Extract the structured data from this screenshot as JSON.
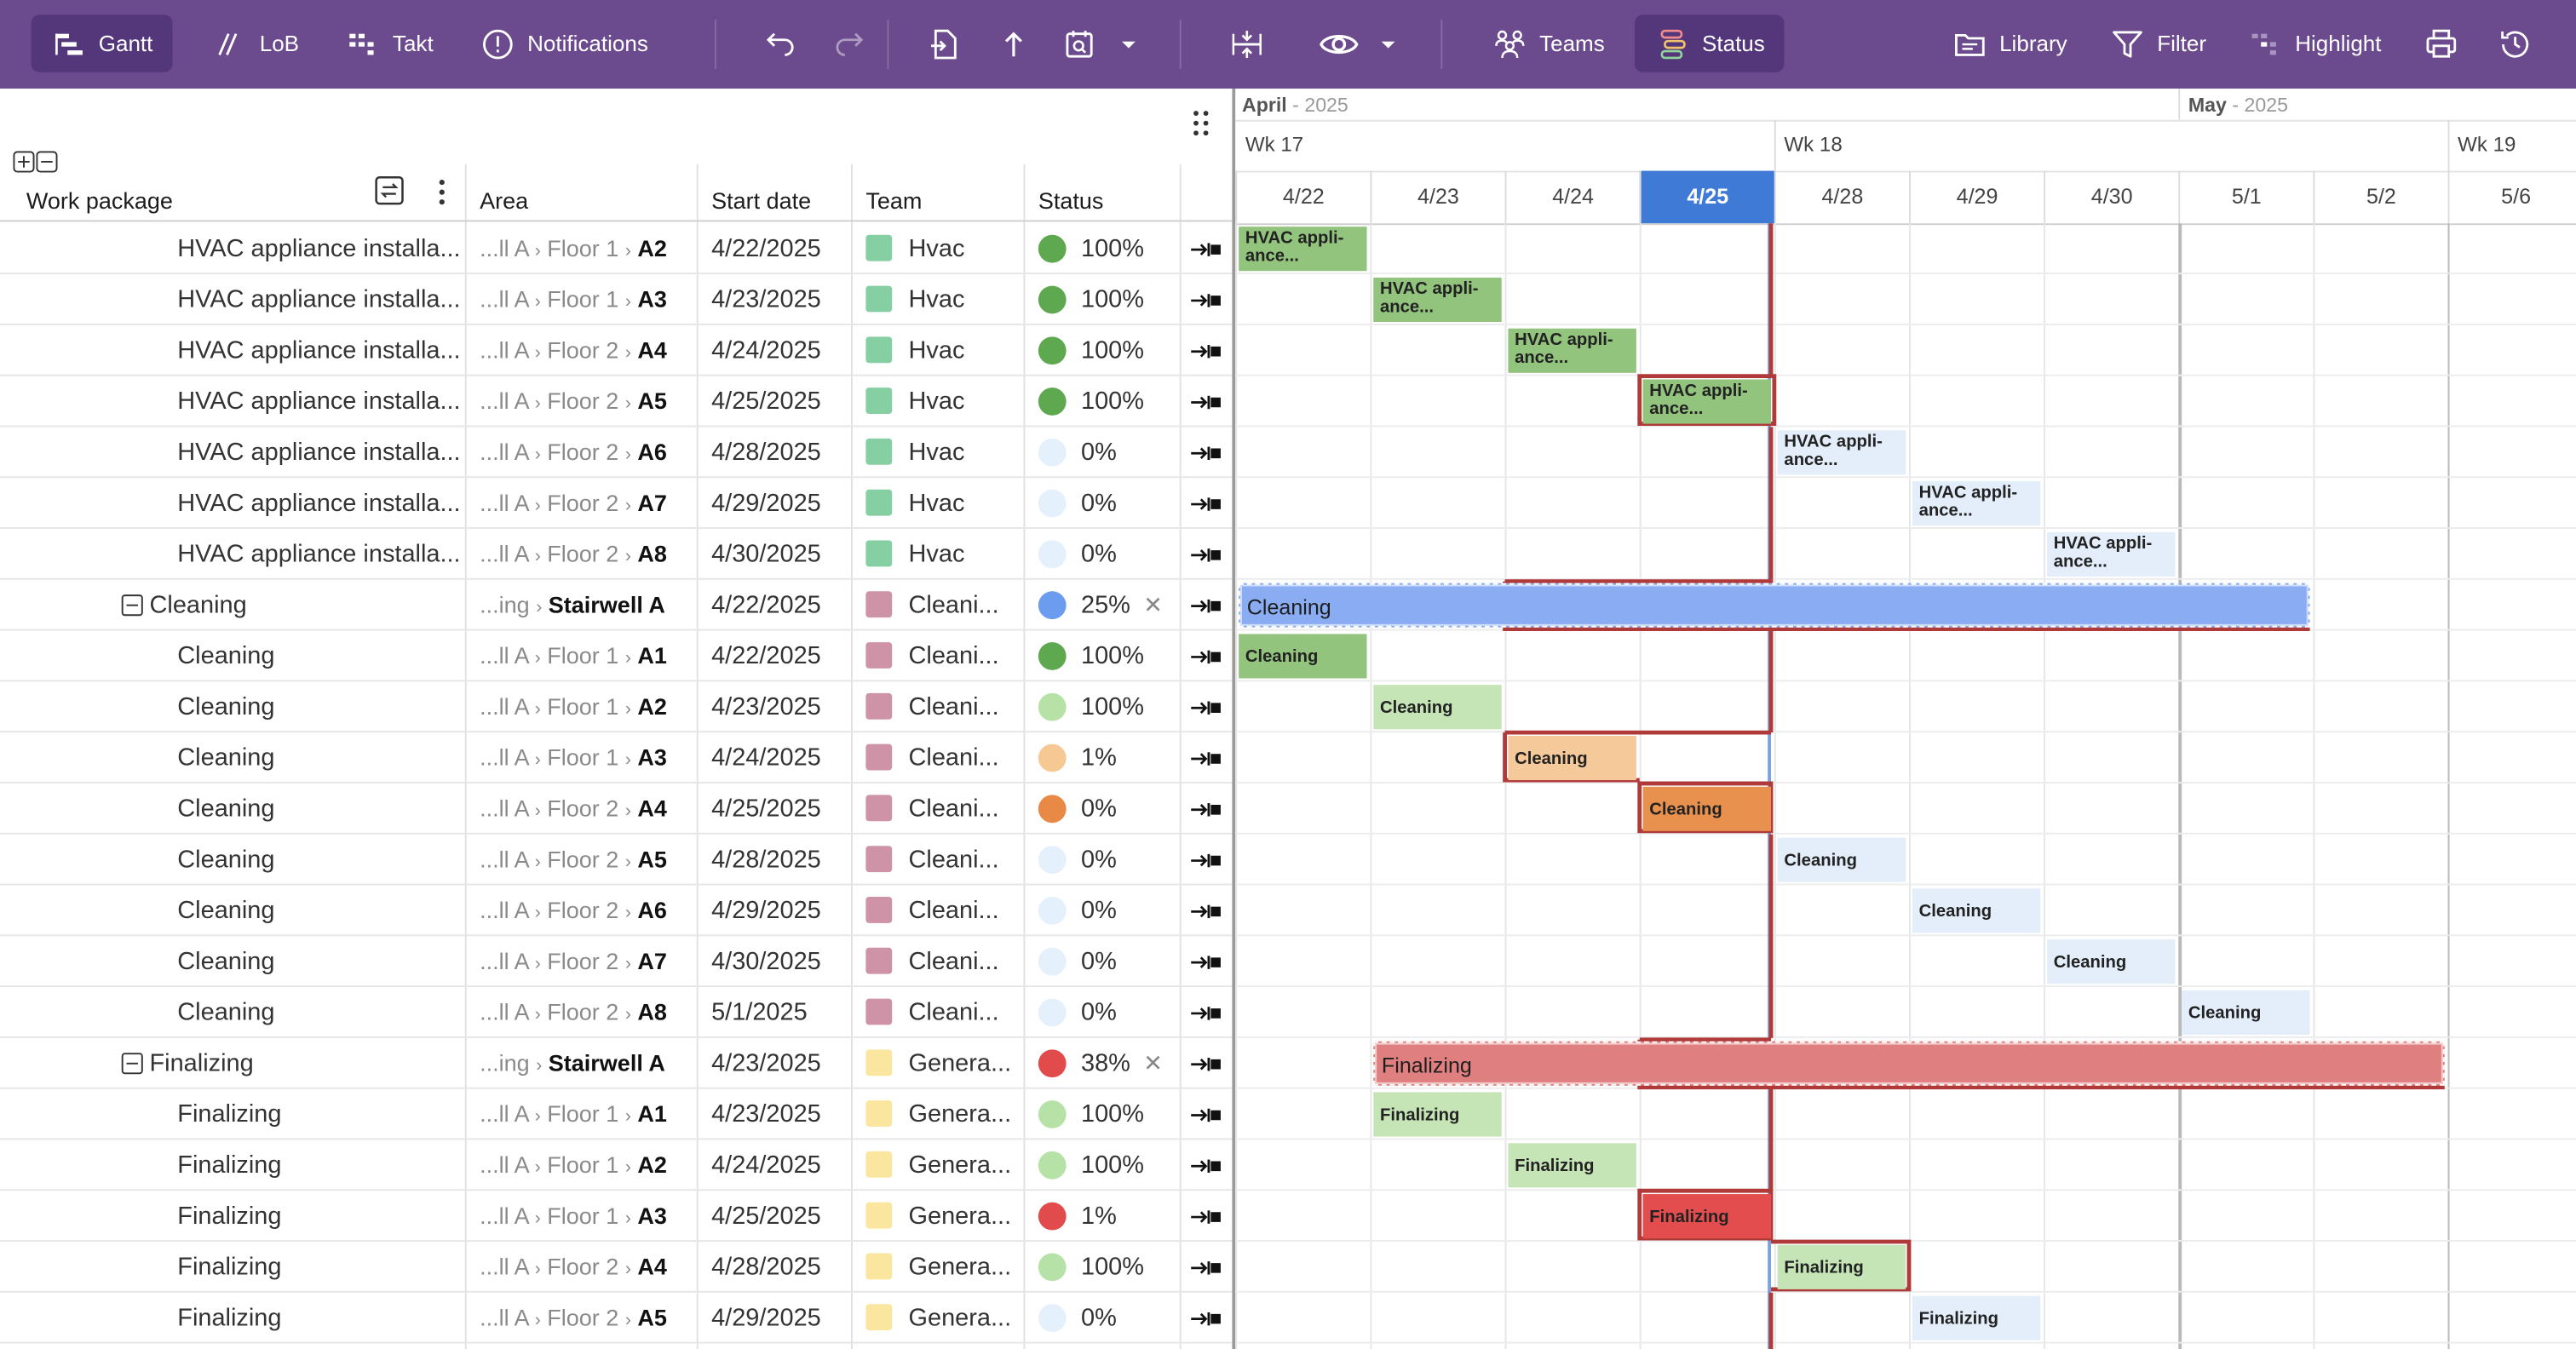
{
  "toolbar": {
    "gantt": "Gantt",
    "lob": "LoB",
    "takt": "Takt",
    "notifications": "Notifications",
    "teams": "Teams",
    "status": "Status",
    "library": "Library",
    "filter": "Filter",
    "highlight": "Highlight"
  },
  "table": {
    "headers": {
      "work_package": "Work package",
      "area": "Area",
      "start_date": "Start date",
      "team": "Team",
      "status": "Status"
    },
    "rows": [
      {
        "name": "HVAC appliance installa...",
        "group": false,
        "area_prefix": "...ll A",
        "area_mid": "Floor 1",
        "area_leaf": "A2",
        "start": "4/22/2025",
        "team": "Hvac",
        "team_color": "#86cfa3",
        "status_color": "#5ea84f",
        "status_pct": "100%"
      },
      {
        "name": "HVAC appliance installa...",
        "group": false,
        "area_prefix": "...ll A",
        "area_mid": "Floor 1",
        "area_leaf": "A3",
        "start": "4/23/2025",
        "team": "Hvac",
        "team_color": "#86cfa3",
        "status_color": "#5ea84f",
        "status_pct": "100%"
      },
      {
        "name": "HVAC appliance installa...",
        "group": false,
        "area_prefix": "...ll A",
        "area_mid": "Floor 2",
        "area_leaf": "A4",
        "start": "4/24/2025",
        "team": "Hvac",
        "team_color": "#86cfa3",
        "status_color": "#5ea84f",
        "status_pct": "100%"
      },
      {
        "name": "HVAC appliance installa...",
        "group": false,
        "area_prefix": "...ll A",
        "area_mid": "Floor 2",
        "area_leaf": "A5",
        "start": "4/25/2025",
        "team": "Hvac",
        "team_color": "#86cfa3",
        "status_color": "#5ea84f",
        "status_pct": "100%"
      },
      {
        "name": "HVAC appliance installa...",
        "group": false,
        "area_prefix": "...ll A",
        "area_mid": "Floor 2",
        "area_leaf": "A6",
        "start": "4/28/2025",
        "team": "Hvac",
        "team_color": "#86cfa3",
        "status_color": "#e4f0fb",
        "status_pct": "0%"
      },
      {
        "name": "HVAC appliance installa...",
        "group": false,
        "area_prefix": "...ll A",
        "area_mid": "Floor 2",
        "area_leaf": "A7",
        "start": "4/29/2025",
        "team": "Hvac",
        "team_color": "#86cfa3",
        "status_color": "#e4f0fb",
        "status_pct": "0%"
      },
      {
        "name": "HVAC appliance installa...",
        "group": false,
        "area_prefix": "...ll A",
        "area_mid": "Floor 2",
        "area_leaf": "A8",
        "start": "4/30/2025",
        "team": "Hvac",
        "team_color": "#86cfa3",
        "status_color": "#e4f0fb",
        "status_pct": "0%"
      },
      {
        "name": "Cleaning",
        "group": true,
        "area_prefix": "...ing",
        "area_mid": "",
        "area_leaf": "Stairwell A",
        "start": "4/22/2025",
        "team": "Cleani...",
        "team_color": "#cf93a8",
        "status_color": "#6b9cf0",
        "status_pct": "25%"
      },
      {
        "name": "Cleaning",
        "group": false,
        "area_prefix": "...ll A",
        "area_mid": "Floor 1",
        "area_leaf": "A1",
        "start": "4/22/2025",
        "team": "Cleani...",
        "team_color": "#cf93a8",
        "status_color": "#5ea84f",
        "status_pct": "100%"
      },
      {
        "name": "Cleaning",
        "group": false,
        "area_prefix": "...ll A",
        "area_mid": "Floor 1",
        "area_leaf": "A2",
        "start": "4/23/2025",
        "team": "Cleani...",
        "team_color": "#cf93a8",
        "status_color": "#b7e2a7",
        "status_pct": "100%"
      },
      {
        "name": "Cleaning",
        "group": false,
        "area_prefix": "...ll A",
        "area_mid": "Floor 1",
        "area_leaf": "A3",
        "start": "4/24/2025",
        "team": "Cleani...",
        "team_color": "#cf93a8",
        "status_color": "#f5c894",
        "status_pct": "1%"
      },
      {
        "name": "Cleaning",
        "group": false,
        "area_prefix": "...ll A",
        "area_mid": "Floor 2",
        "area_leaf": "A4",
        "start": "4/25/2025",
        "team": "Cleani...",
        "team_color": "#cf93a8",
        "status_color": "#e88a45",
        "status_pct": "0%"
      },
      {
        "name": "Cleaning",
        "group": false,
        "area_prefix": "...ll A",
        "area_mid": "Floor 2",
        "area_leaf": "A5",
        "start": "4/28/2025",
        "team": "Cleani...",
        "team_color": "#cf93a8",
        "status_color": "#e4f0fb",
        "status_pct": "0%"
      },
      {
        "name": "Cleaning",
        "group": false,
        "area_prefix": "...ll A",
        "area_mid": "Floor 2",
        "area_leaf": "A6",
        "start": "4/29/2025",
        "team": "Cleani...",
        "team_color": "#cf93a8",
        "status_color": "#e4f0fb",
        "status_pct": "0%"
      },
      {
        "name": "Cleaning",
        "group": false,
        "area_prefix": "...ll A",
        "area_mid": "Floor 2",
        "area_leaf": "A7",
        "start": "4/30/2025",
        "team": "Cleani...",
        "team_color": "#cf93a8",
        "status_color": "#e4f0fb",
        "status_pct": "0%"
      },
      {
        "name": "Cleaning",
        "group": false,
        "area_prefix": "...ll A",
        "area_mid": "Floor 2",
        "area_leaf": "A8",
        "start": "5/1/2025",
        "team": "Cleani...",
        "team_color": "#cf93a8",
        "status_color": "#e4f0fb",
        "status_pct": "0%"
      },
      {
        "name": "Finalizing",
        "group": true,
        "area_prefix": "...ing",
        "area_mid": "",
        "area_leaf": "Stairwell A",
        "start": "4/23/2025",
        "team": "Genera...",
        "team_color": "#fbe6a0",
        "status_color": "#e24b4b",
        "status_pct": "38%"
      },
      {
        "name": "Finalizing",
        "group": false,
        "area_prefix": "...ll A",
        "area_mid": "Floor 1",
        "area_leaf": "A1",
        "start": "4/23/2025",
        "team": "Genera...",
        "team_color": "#fbe6a0",
        "status_color": "#b7e2a7",
        "status_pct": "100%"
      },
      {
        "name": "Finalizing",
        "group": false,
        "area_prefix": "...ll A",
        "area_mid": "Floor 1",
        "area_leaf": "A2",
        "start": "4/24/2025",
        "team": "Genera...",
        "team_color": "#fbe6a0",
        "status_color": "#b7e2a7",
        "status_pct": "100%"
      },
      {
        "name": "Finalizing",
        "group": false,
        "area_prefix": "...ll A",
        "area_mid": "Floor 1",
        "area_leaf": "A3",
        "start": "4/25/2025",
        "team": "Genera...",
        "team_color": "#fbe6a0",
        "status_color": "#e24b4b",
        "status_pct": "1%"
      },
      {
        "name": "Finalizing",
        "group": false,
        "area_prefix": "...ll A",
        "area_mid": "Floor 2",
        "area_leaf": "A4",
        "start": "4/28/2025",
        "team": "Genera...",
        "team_color": "#fbe6a0",
        "status_color": "#b7e2a7",
        "status_pct": "100%"
      },
      {
        "name": "Finalizing",
        "group": false,
        "area_prefix": "...ll A",
        "area_mid": "Floor 2",
        "area_leaf": "A5",
        "start": "4/29/2025",
        "team": "Genera...",
        "team_color": "#fbe6a0",
        "status_color": "#e4f0fb",
        "status_pct": "0%"
      }
    ]
  },
  "gantt": {
    "months": [
      {
        "name": "April",
        "year": "- 2025"
      },
      {
        "name": "May",
        "year": "- 2025"
      }
    ],
    "weeks": [
      "Wk 17",
      "Wk 18",
      "Wk 19"
    ],
    "days": [
      "4/22",
      "4/23",
      "4/24",
      "4/25",
      "4/28",
      "4/29",
      "4/30",
      "5/1",
      "5/2",
      "5/6"
    ],
    "today": "4/25",
    "bars": [
      {
        "label": "HVAC appli- ance...",
        "color": "#93c47d",
        "start": "4/22",
        "end": "4/22",
        "late": false
      },
      {
        "label": "HVAC appli- ance...",
        "color": "#93c47d",
        "start": "4/23",
        "end": "4/23",
        "late": false
      },
      {
        "label": "HVAC appli- ance...",
        "color": "#93c47d",
        "start": "4/24",
        "end": "4/24",
        "late": false
      },
      {
        "label": "HVAC appli- ance...",
        "color": "#93c47d",
        "start": "4/25",
        "end": "4/25",
        "late": true
      },
      {
        "label": "HVAC appli- ance...",
        "color": "#e3eefa",
        "start": "4/28",
        "end": "4/28",
        "late": false
      },
      {
        "label": "HVAC appli- ance...",
        "color": "#e3eefa",
        "start": "4/29",
        "end": "4/29",
        "late": false
      },
      {
        "label": "HVAC appli- ance...",
        "color": "#e3eefa",
        "start": "4/30",
        "end": "4/30",
        "late": false
      },
      {
        "label": "Cleaning",
        "color": "#8aacf2",
        "start": "4/22",
        "end": "5/1",
        "summary": true,
        "late": true
      },
      {
        "label": "Cleaning",
        "color": "#93c47d",
        "start": "4/22",
        "end": "4/22",
        "late": false
      },
      {
        "label": "Cleaning",
        "color": "#c5e5b6",
        "start": "4/23",
        "end": "4/23",
        "late": false
      },
      {
        "label": "Cleaning",
        "color": "#f5c99a",
        "start": "4/24",
        "end": "4/24",
        "late": true
      },
      {
        "label": "Cleaning",
        "color": "#e8914e",
        "start": "4/25",
        "end": "4/25",
        "late": true
      },
      {
        "label": "Cleaning",
        "color": "#e3eefa",
        "start": "4/28",
        "end": "4/28",
        "late": false
      },
      {
        "label": "Cleaning",
        "color": "#e3eefa",
        "start": "4/29",
        "end": "4/29",
        "late": false
      },
      {
        "label": "Cleaning",
        "color": "#e3eefa",
        "start": "4/30",
        "end": "4/30",
        "late": false
      },
      {
        "label": "Cleaning",
        "color": "#e3eefa",
        "start": "5/1",
        "end": "5/1",
        "late": false
      },
      {
        "label": "Finalizing",
        "color": "#e07f7f",
        "start": "4/23",
        "end": "5/2",
        "summary": true,
        "late": true
      },
      {
        "label": "Finalizing",
        "color": "#c5e5b6",
        "start": "4/23",
        "end": "4/23",
        "late": false
      },
      {
        "label": "Finalizing",
        "color": "#c5e5b6",
        "start": "4/24",
        "end": "4/24",
        "late": false
      },
      {
        "label": "Finalizing",
        "color": "#e34d4d",
        "start": "4/25",
        "end": "4/25",
        "late": true
      },
      {
        "label": "Finalizing",
        "color": "#c5e5b6",
        "start": "4/28",
        "end": "4/28",
        "late": true
      },
      {
        "label": "Finalizing",
        "color": "#e3eefa",
        "start": "4/29",
        "end": "4/29",
        "late": false
      }
    ]
  },
  "colors": {
    "toolbar": "#6b4a8d",
    "toolbar_active": "#54377a",
    "today": "#3f7ad6",
    "critical_path": "#b03a3a"
  }
}
